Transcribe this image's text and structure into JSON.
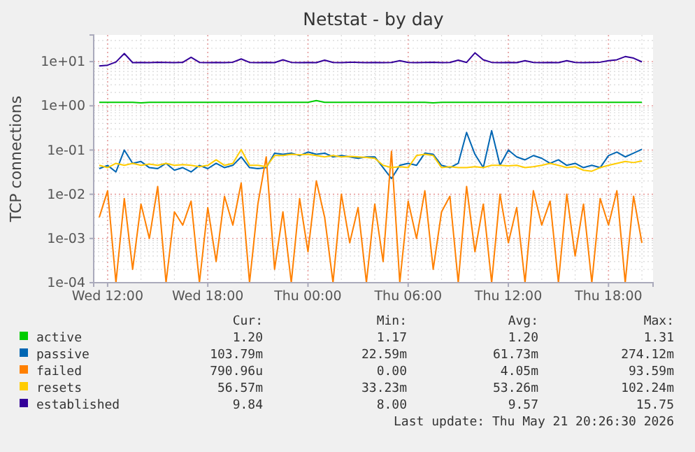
{
  "chart_data": {
    "type": "line",
    "title": "Netstat - by day",
    "ylabel": "TCP connections",
    "log": "y",
    "grid": true,
    "legend": "bottom",
    "marker": "none",
    "line_style": "solid",
    "xlim": [
      "2026-05-20T11:10",
      "2026-05-21T20:40"
    ],
    "xticks": [
      {
        "value": "2026-05-20T12:00",
        "label": "Wed 12:00"
      },
      {
        "value": "2026-05-20T18:00",
        "label": "Wed 18:00"
      },
      {
        "value": "2026-05-21T00:00",
        "label": "Thu 00:00"
      },
      {
        "value": "2026-05-21T06:00",
        "label": "Thu 06:00"
      },
      {
        "value": "2026-05-21T12:00",
        "label": "Thu 12:00"
      },
      {
        "value": "2026-05-21T18:00",
        "label": "Thu 18:00"
      }
    ],
    "ylim": [
      0.0001,
      40
    ],
    "yticks": [
      {
        "value": 0.0001,
        "label": "1e-04"
      },
      {
        "value": 0.001,
        "label": "1e-03"
      },
      {
        "value": 0.01,
        "label": "1e-02"
      },
      {
        "value": 0.1,
        "label": "1e-01"
      },
      {
        "value": 1,
        "label": "1e+00"
      },
      {
        "value": 10,
        "label": "1e+01"
      }
    ],
    "x": [
      "2026-05-20T11:30",
      "2026-05-20T12:00",
      "2026-05-20T12:30",
      "2026-05-20T13:00",
      "2026-05-20T13:30",
      "2026-05-20T14:00",
      "2026-05-20T14:30",
      "2026-05-20T15:00",
      "2026-05-20T15:30",
      "2026-05-20T16:00",
      "2026-05-20T16:30",
      "2026-05-20T17:00",
      "2026-05-20T17:30",
      "2026-05-20T18:00",
      "2026-05-20T18:30",
      "2026-05-20T19:00",
      "2026-05-20T19:30",
      "2026-05-20T20:00",
      "2026-05-20T20:30",
      "2026-05-20T21:00",
      "2026-05-20T21:30",
      "2026-05-20T22:00",
      "2026-05-20T22:30",
      "2026-05-20T23:00",
      "2026-05-20T23:30",
      "2026-05-21T00:00",
      "2026-05-21T00:30",
      "2026-05-21T01:00",
      "2026-05-21T01:30",
      "2026-05-21T02:00",
      "2026-05-21T02:30",
      "2026-05-21T03:00",
      "2026-05-21T03:30",
      "2026-05-21T04:00",
      "2026-05-21T04:30",
      "2026-05-21T05:00",
      "2026-05-21T05:30",
      "2026-05-21T06:00",
      "2026-05-21T06:30",
      "2026-05-21T07:00",
      "2026-05-21T07:30",
      "2026-05-21T08:00",
      "2026-05-21T08:30",
      "2026-05-21T09:00",
      "2026-05-21T09:30",
      "2026-05-21T10:00",
      "2026-05-21T10:30",
      "2026-05-21T11:00",
      "2026-05-21T11:30",
      "2026-05-21T12:00",
      "2026-05-21T12:30",
      "2026-05-21T13:00",
      "2026-05-21T13:30",
      "2026-05-21T14:00",
      "2026-05-21T14:30",
      "2026-05-21T15:00",
      "2026-05-21T15:30",
      "2026-05-21T16:00",
      "2026-05-21T16:30",
      "2026-05-21T17:00",
      "2026-05-21T17:30",
      "2026-05-21T18:00",
      "2026-05-21T18:30",
      "2026-05-21T19:00",
      "2026-05-21T19:30",
      "2026-05-21T20:00"
    ],
    "series": [
      {
        "name": "active",
        "color": "#00cc00",
        "values": [
          1.2,
          1.2,
          1.2,
          1.2,
          1.2,
          1.17,
          1.2,
          1.2,
          1.2,
          1.2,
          1.2,
          1.2,
          1.2,
          1.2,
          1.2,
          1.2,
          1.2,
          1.2,
          1.2,
          1.2,
          1.2,
          1.2,
          1.2,
          1.2,
          1.2,
          1.2,
          1.31,
          1.2,
          1.2,
          1.2,
          1.2,
          1.2,
          1.2,
          1.2,
          1.2,
          1.2,
          1.2,
          1.2,
          1.2,
          1.2,
          1.17,
          1.2,
          1.2,
          1.2,
          1.2,
          1.2,
          1.2,
          1.2,
          1.2,
          1.2,
          1.2,
          1.2,
          1.2,
          1.2,
          1.2,
          1.2,
          1.2,
          1.2,
          1.2,
          1.2,
          1.2,
          1.2,
          1.2,
          1.2,
          1.2,
          1.2
        ]
      },
      {
        "name": "passive",
        "color": "#0066b3",
        "values": [
          0.038,
          0.045,
          0.032,
          0.1,
          0.05,
          0.055,
          0.04,
          0.038,
          0.05,
          0.035,
          0.04,
          0.032,
          0.045,
          0.038,
          0.05,
          0.04,
          0.045,
          0.07,
          0.04,
          0.038,
          0.04,
          0.085,
          0.08,
          0.085,
          0.075,
          0.09,
          0.08,
          0.085,
          0.07,
          0.075,
          0.07,
          0.065,
          0.07,
          0.07,
          0.04,
          0.02259,
          0.045,
          0.05,
          0.045,
          0.085,
          0.08,
          0.045,
          0.04,
          0.05,
          0.25,
          0.08,
          0.04,
          0.274,
          0.045,
          0.1,
          0.07,
          0.06,
          0.075,
          0.065,
          0.05,
          0.06,
          0.045,
          0.05,
          0.04,
          0.045,
          0.04,
          0.075,
          0.09,
          0.07,
          0.085,
          0.10379
        ]
      },
      {
        "name": "failed",
        "color": "#ff8000",
        "values": [
          0.003,
          0.012,
          0.0001,
          0.008,
          0.0002,
          0.006,
          0.001,
          0.015,
          0.0001,
          0.004,
          0.002,
          0.007,
          0.0001,
          0.005,
          0.0003,
          0.009,
          0.002,
          0.018,
          0.0001,
          0.006,
          0.07,
          0.0002,
          0.004,
          0.0001,
          0.008,
          0.0005,
          0.02,
          0.003,
          0.0001,
          0.01,
          0.0008,
          0.005,
          0.0001,
          0.006,
          0.0003,
          0.09359,
          0.0001,
          0.007,
          0.001,
          0.012,
          0.0002,
          0.004,
          0.009,
          0.0001,
          0.015,
          0.0005,
          0.006,
          0.0001,
          0.01,
          0.0008,
          0.005,
          0.0001,
          0.012,
          0.002,
          0.007,
          0.0001,
          0.01,
          0.0004,
          0.006,
          0.0001,
          0.008,
          0.002,
          0.012,
          0.0001,
          0.009,
          0.00079096
        ]
      },
      {
        "name": "resets",
        "color": "#ffcc00",
        "values": [
          0.045,
          0.04,
          0.05,
          0.045,
          0.05,
          0.045,
          0.048,
          0.045,
          0.05,
          0.045,
          0.047,
          0.045,
          0.042,
          0.045,
          0.06,
          0.045,
          0.05,
          0.10224,
          0.045,
          0.045,
          0.042,
          0.075,
          0.075,
          0.08,
          0.078,
          0.08,
          0.075,
          0.07,
          0.075,
          0.07,
          0.072,
          0.07,
          0.068,
          0.065,
          0.045,
          0.04,
          0.042,
          0.04,
          0.075,
          0.08,
          0.075,
          0.04,
          0.042,
          0.04,
          0.04,
          0.042,
          0.04,
          0.045,
          0.045,
          0.044,
          0.045,
          0.04,
          0.042,
          0.045,
          0.05,
          0.045,
          0.04,
          0.042,
          0.035,
          0.03323,
          0.04,
          0.045,
          0.05,
          0.055,
          0.052,
          0.05657
        ]
      },
      {
        "name": "established",
        "color": "#330099",
        "values": [
          8.0,
          8.3,
          9.8,
          15.2,
          9.5,
          9.6,
          9.5,
          9.7,
          9.6,
          9.5,
          9.6,
          12.5,
          9.6,
          9.5,
          9.6,
          9.5,
          9.7,
          11.5,
          9.6,
          9.5,
          9.6,
          9.5,
          11.0,
          9.6,
          9.5,
          9.6,
          9.5,
          10.8,
          9.6,
          9.5,
          9.7,
          9.6,
          9.5,
          9.6,
          9.5,
          9.6,
          10.5,
          9.6,
          9.5,
          9.6,
          9.7,
          9.5,
          9.6,
          10.8,
          9.6,
          15.75,
          11.0,
          9.6,
          9.5,
          9.6,
          9.5,
          10.5,
          9.6,
          9.5,
          9.6,
          9.5,
          10.5,
          9.6,
          9.5,
          9.6,
          9.7,
          10.5,
          11.0,
          13.0,
          12.0,
          9.84
        ]
      }
    ],
    "annotations": [
      "Cur:",
      "Min:",
      "Avg:",
      "Max:",
      "1.20",
      "1.17",
      "1.20",
      "1.31",
      "103.79m",
      "22.59m",
      "61.73m",
      "274.12m",
      "790.96u",
      "0.00",
      "4.05m",
      "93.59m",
      "56.57m",
      "33.23m",
      "53.26m",
      "102.24m",
      "9.84",
      "8.00",
      "9.57",
      "15.75",
      "Last update: Thu May 21 20:26:30 2026"
    ]
  }
}
